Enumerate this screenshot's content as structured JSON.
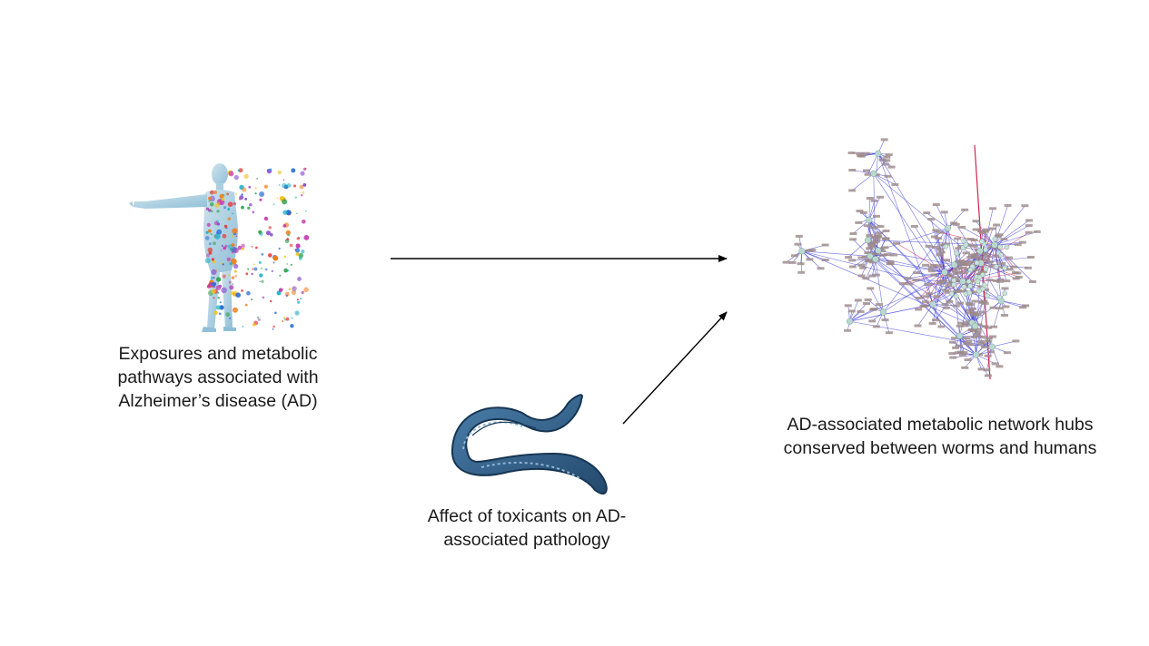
{
  "captions": {
    "human": {
      "line1": "Exposures and metabolic",
      "line2": "pathways associated with",
      "line3": "Alzheimer’s disease (AD)"
    },
    "worm": {
      "line1": "Affect of toxicants on AD-",
      "line2": "associated pathology"
    },
    "network": {
      "line1": "AD-associated metabolic network hubs",
      "line2": "conserved between worms and humans"
    }
  },
  "colors": {
    "arrow": "#000000",
    "caption_text": "#1a1a1a",
    "human_body": "#a8cfe0",
    "worm_body": "#2f5f8a",
    "worm_outline": "#173552",
    "network_edge": "#3b3bd6",
    "network_edge_highlight": "#d0234a",
    "network_node": "#b9d9cf",
    "network_label": "#9c8a8a"
  },
  "icons": {
    "human": "disintegrating-human-figure",
    "worm": "nematode-worm",
    "network": "metabolic-network-graph"
  }
}
